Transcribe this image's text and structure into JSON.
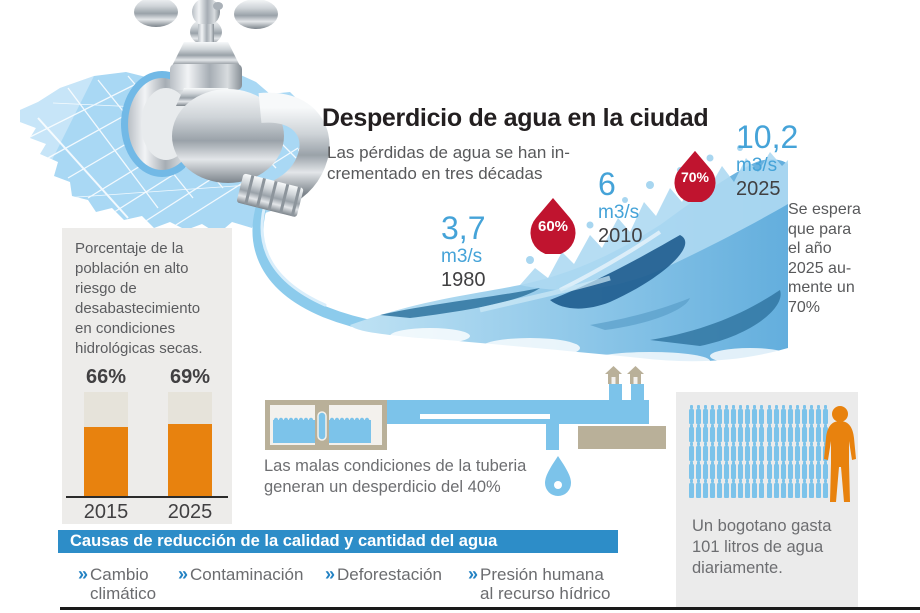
{
  "title": "Desperdicio de agua en la ciudad",
  "subtitle": "Las pérdidas de agua se han in-\ncrementado en tres décadas",
  "side_note": "Se espera\nque para\nel año\n2025 au-\nmente un\n70%",
  "flow_stats": [
    {
      "value": "3,7",
      "unit": "m3/s",
      "year": "1980"
    },
    {
      "value": "6",
      "unit": "m3/s",
      "year": "2010"
    },
    {
      "value": "10,2",
      "unit": "m3/s",
      "year": "2025"
    }
  ],
  "drops": [
    {
      "label": "60%"
    },
    {
      "label": "70%"
    }
  ],
  "left_panel": {
    "description": "Porcentaje de la\npoblación en alto\nriesgo de\ndesabastecimiento\nen condiciones\nhidrológicas secas."
  },
  "chart_data": [
    {
      "type": "line",
      "title": "Las pérdidas de agua se han incrementado en tres décadas",
      "x": [
        1980,
        2010,
        2025
      ],
      "y": [
        3.7,
        6,
        10.2
      ],
      "ylabel": "m3/s",
      "annotations": [
        "60%",
        "70%"
      ],
      "note": "Se espera que para el año 2025 aumente un 70%"
    },
    {
      "type": "bar",
      "title": "Porcentaje de la población en alto riesgo de desabastecimiento en condiciones hidrológicas secas.",
      "categories": [
        "2015",
        "2025"
      ],
      "values": [
        66,
        69
      ],
      "value_labels": [
        "66%",
        "69%"
      ],
      "ylim": [
        0,
        100
      ],
      "bar_color": "#e8820e",
      "remainder_color": "#e6e3da"
    }
  ],
  "pipe_section": {
    "caption": "Las malas condiciones de la tuberia\ngeneran un desperdicio del 40%"
  },
  "consumption": {
    "caption": "Un bogotano gasta\n101 litros de agua\ndiariamente.",
    "bottle_rows": 5,
    "bottles_per_row": 20
  },
  "causes": {
    "header": "Causas de reducción de la calidad y cantidad del agua",
    "bullet": "»",
    "items": [
      "Cambio\nclimático",
      "Contaminación",
      "Deforestación",
      "Presión humana\nal recurso hídrico"
    ]
  },
  "colors": {
    "accent_blue": "#45a3d8",
    "water_blue": "#7cc3ea",
    "map_blue": "#a9d8f4",
    "causes_bar_blue": "#2d8dc8",
    "orange": "#e8820e",
    "red": "#c0142f",
    "tan": "#b9b099",
    "panel_gray": "#edecea",
    "text_dark": "#414042",
    "text_gray": "#6d6e71"
  }
}
